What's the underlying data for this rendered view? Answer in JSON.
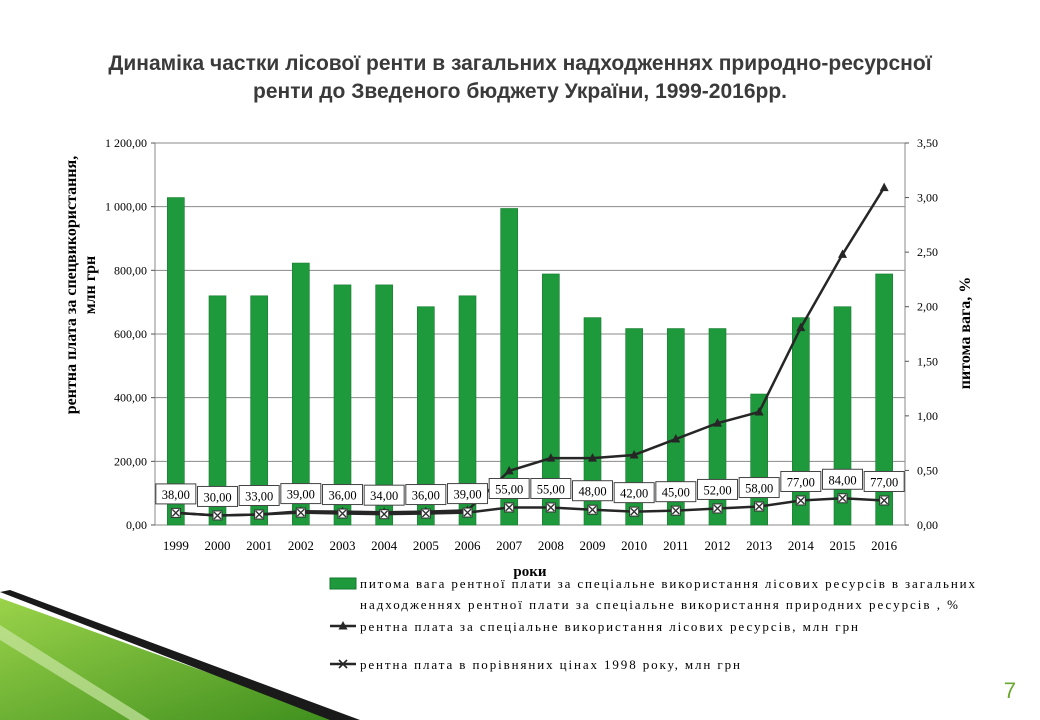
{
  "title_line1": "Динаміка частки лісової ренти в загальних надходженнях природно-ресурсної",
  "title_line2": "ренти до Зведеного бюджету України, 1999-2016рр.",
  "page_number": "7",
  "chart_data": {
    "type": "bar",
    "categories": [
      "1999",
      "2000",
      "2001",
      "2002",
      "2003",
      "2004",
      "2005",
      "2006",
      "2007",
      "2008",
      "2009",
      "2010",
      "2011",
      "2012",
      "2013",
      "2014",
      "2015",
      "2016"
    ],
    "xlabel": "роки",
    "ylabel": "рентна плата за спецвикористання, млн грн",
    "ylabel_right": "питома вага, %",
    "ylim": [
      0,
      1200
    ],
    "ylim_right": [
      0,
      3.5
    ],
    "yticks_left": [
      "0,00",
      "200,00",
      "400,00",
      "600,00",
      "800,00",
      "1 000,00",
      "1 200,00"
    ],
    "yticks_right": [
      "0,00",
      "0,50",
      "1,00",
      "1,50",
      "2,00",
      "2,50",
      "3,00",
      "3,50"
    ],
    "series": [
      {
        "name": "питома вага рентної плати за спеціальне використання лісових ресурсів в загальних надходженнях рентної плати за спеціальне використання природних ресурсів , %",
        "legend_line1": "питома вага рентної плати за спеціальне використання лісових ресурсів в загальних",
        "legend_line2": "надходженнях рентної плати за спеціальне використання природних ресурсів , %",
        "kind": "bar",
        "axis": "right",
        "color": "#1e9a3c",
        "values": [
          3.0,
          2.1,
          2.1,
          2.4,
          2.2,
          2.2,
          2.0,
          2.1,
          2.9,
          2.3,
          1.9,
          1.8,
          1.8,
          1.8,
          1.2,
          1.9,
          2.0,
          2.3
        ]
      },
      {
        "name": "рентна плата за спеціальне використання лісових ресурсів, млн грн",
        "kind": "line",
        "axis": "left",
        "marker": "triangle",
        "color": "#262626",
        "values": [
          38,
          30,
          33,
          43,
          42,
          40,
          42,
          46,
          170,
          210,
          210,
          220,
          270,
          320,
          355,
          620,
          850,
          1060
        ]
      },
      {
        "name": "рентна плата в порівняних цінах 1998 року, млн грн",
        "kind": "line",
        "axis": "left",
        "marker": "x",
        "color": "#262626",
        "values": [
          38,
          30,
          33,
          39,
          36,
          34,
          36,
          39,
          55,
          55,
          48,
          42,
          45,
          52,
          58,
          77,
          84,
          77
        ],
        "labels": [
          "38,00",
          "30,00",
          "33,00",
          "39,00",
          "36,00",
          "34,00",
          "36,00",
          "39,00",
          "55,00",
          "55,00",
          "48,00",
          "42,00",
          "45,00",
          "52,00",
          "58,00",
          "77,00",
          "84,00",
          "77,00"
        ]
      }
    ],
    "grid": true,
    "legend_position": "bottom"
  },
  "colors": {
    "bar": "#1e9a3c",
    "line": "#262626",
    "accent": "#6aa72c"
  }
}
